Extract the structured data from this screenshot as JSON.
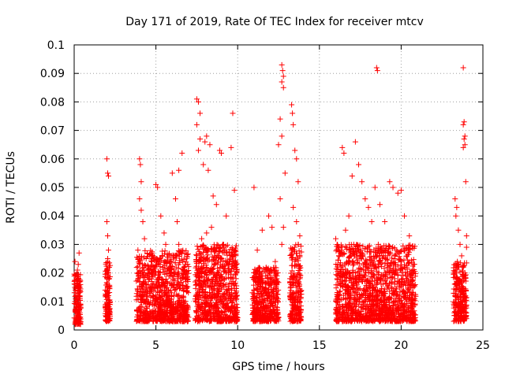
{
  "chart_data": {
    "type": "scatter",
    "title": "Day 171 of 2019, Rate Of TEC Index for receiver mtcv",
    "xlabel": "GPS time / hours",
    "ylabel": "ROTI / TECUs",
    "xlim": [
      0,
      25
    ],
    "ylim": [
      0,
      0.1
    ],
    "x_ticks": [
      0,
      5,
      10,
      15,
      20,
      25
    ],
    "x_tick_labels": [
      "0",
      "5",
      "10",
      "15",
      "20",
      "25"
    ],
    "y_ticks": [
      0,
      0.01,
      0.02,
      0.03,
      0.04,
      0.05,
      0.06,
      0.07,
      0.08,
      0.09,
      0.1
    ],
    "y_tick_labels": [
      "0",
      "0.01",
      "0.02",
      "0.03",
      "0.04",
      "0.05",
      "0.06",
      "0.07",
      "0.08",
      "0.09",
      "0.1"
    ],
    "grid": true,
    "marker": "+",
    "color": "#ff0000",
    "series": [
      {
        "name": "ROTI",
        "points": [
          [
            0.05,
            0.024
          ],
          [
            0.1,
            0.012
          ],
          [
            0.15,
            0.008
          ],
          [
            0.2,
            0.018
          ],
          [
            0.25,
            0.005
          ],
          [
            0.3,
            0.027
          ],
          [
            0.35,
            0.015
          ],
          [
            0.1,
            0.003
          ],
          [
            0.2,
            0.021
          ],
          [
            0.3,
            0.009
          ],
          [
            0.05,
            0.016
          ],
          [
            0.25,
            0.023
          ],
          [
            0.35,
            0.006
          ],
          [
            0.15,
            0.019
          ],
          [
            2.0,
            0.06
          ],
          [
            2.05,
            0.055
          ],
          [
            2.1,
            0.054
          ],
          [
            2.0,
            0.038
          ],
          [
            2.05,
            0.033
          ],
          [
            2.1,
            0.028
          ],
          [
            2.15,
            0.022
          ],
          [
            2.0,
            0.018
          ],
          [
            2.05,
            0.015
          ],
          [
            2.1,
            0.012
          ],
          [
            2.15,
            0.009
          ],
          [
            2.0,
            0.007
          ],
          [
            2.1,
            0.02
          ],
          [
            2.05,
            0.025
          ],
          [
            4.0,
            0.06
          ],
          [
            4.05,
            0.058
          ],
          [
            4.1,
            0.052
          ],
          [
            4.0,
            0.046
          ],
          [
            4.1,
            0.042
          ],
          [
            4.2,
            0.038
          ],
          [
            4.3,
            0.032
          ],
          [
            3.9,
            0.028
          ],
          [
            4.4,
            0.025
          ],
          [
            4.5,
            0.021
          ],
          [
            4.6,
            0.018
          ],
          [
            4.2,
            0.015
          ],
          [
            4.8,
            0.012
          ],
          [
            4.4,
            0.01
          ],
          [
            4.0,
            0.008
          ],
          [
            4.9,
            0.022
          ],
          [
            5.0,
            0.051
          ],
          [
            5.1,
            0.05
          ],
          [
            5.3,
            0.04
          ],
          [
            5.5,
            0.034
          ],
          [
            5.6,
            0.03
          ],
          [
            5.8,
            0.026
          ],
          [
            6.0,
            0.055
          ],
          [
            6.2,
            0.046
          ],
          [
            6.4,
            0.056
          ],
          [
            6.6,
            0.062
          ],
          [
            6.3,
            0.038
          ],
          [
            5.9,
            0.02
          ],
          [
            5.4,
            0.016
          ],
          [
            6.1,
            0.012
          ],
          [
            6.5,
            0.018
          ],
          [
            5.2,
            0.009
          ],
          [
            6.7,
            0.014
          ],
          [
            6.0,
            0.006
          ],
          [
            5.7,
            0.024
          ],
          [
            6.4,
            0.03
          ],
          [
            7.5,
            0.081
          ],
          [
            7.6,
            0.08
          ],
          [
            7.7,
            0.076
          ],
          [
            7.5,
            0.072
          ],
          [
            7.7,
            0.067
          ],
          [
            7.6,
            0.063
          ],
          [
            8.1,
            0.068
          ],
          [
            8.0,
            0.066
          ],
          [
            8.3,
            0.065
          ],
          [
            7.9,
            0.058
          ],
          [
            8.2,
            0.056
          ],
          [
            8.5,
            0.047
          ],
          [
            8.9,
            0.063
          ],
          [
            9.0,
            0.062
          ],
          [
            9.6,
            0.064
          ],
          [
            9.7,
            0.076
          ],
          [
            9.8,
            0.049
          ],
          [
            8.7,
            0.044
          ],
          [
            9.3,
            0.04
          ],
          [
            8.4,
            0.036
          ],
          [
            7.8,
            0.032
          ],
          [
            9.1,
            0.03
          ],
          [
            8.6,
            0.026
          ],
          [
            9.5,
            0.024
          ],
          [
            7.9,
            0.022
          ],
          [
            8.8,
            0.02
          ],
          [
            9.9,
            0.018
          ],
          [
            8.0,
            0.016
          ],
          [
            9.4,
            0.014
          ],
          [
            8.3,
            0.012
          ],
          [
            9.0,
            0.01
          ],
          [
            7.6,
            0.008
          ],
          [
            9.7,
            0.006
          ],
          [
            8.5,
            0.005
          ],
          [
            9.2,
            0.028
          ],
          [
            8.1,
            0.034
          ],
          [
            11.0,
            0.05
          ],
          [
            11.2,
            0.028
          ],
          [
            11.5,
            0.035
          ],
          [
            11.9,
            0.04
          ],
          [
            12.1,
            0.036
          ],
          [
            12.3,
            0.024
          ],
          [
            11.3,
            0.018
          ],
          [
            11.6,
            0.014
          ],
          [
            11.1,
            0.01
          ],
          [
            11.8,
            0.008
          ],
          [
            12.0,
            0.02
          ],
          [
            12.2,
            0.012
          ],
          [
            11.4,
            0.006
          ],
          [
            12.4,
            0.016
          ],
          [
            12.7,
            0.093
          ],
          [
            12.75,
            0.091
          ],
          [
            12.8,
            0.089
          ],
          [
            12.7,
            0.087
          ],
          [
            12.8,
            0.085
          ],
          [
            12.6,
            0.074
          ],
          [
            12.7,
            0.068
          ],
          [
            12.5,
            0.065
          ],
          [
            12.9,
            0.055
          ],
          [
            12.6,
            0.046
          ],
          [
            12.8,
            0.036
          ],
          [
            12.7,
            0.03
          ],
          [
            13.3,
            0.079
          ],
          [
            13.35,
            0.076
          ],
          [
            13.4,
            0.072
          ],
          [
            13.5,
            0.063
          ],
          [
            13.6,
            0.06
          ],
          [
            13.7,
            0.052
          ],
          [
            13.4,
            0.043
          ],
          [
            13.6,
            0.038
          ],
          [
            13.8,
            0.033
          ],
          [
            13.3,
            0.028
          ],
          [
            13.5,
            0.024
          ],
          [
            13.7,
            0.02
          ],
          [
            13.4,
            0.016
          ],
          [
            13.6,
            0.013
          ],
          [
            13.8,
            0.01
          ],
          [
            13.5,
            0.008
          ],
          [
            13.3,
            0.005
          ],
          [
            13.7,
            0.03
          ],
          [
            16.0,
            0.032
          ],
          [
            16.2,
            0.028
          ],
          [
            16.4,
            0.064
          ],
          [
            16.5,
            0.062
          ],
          [
            16.8,
            0.04
          ],
          [
            17.0,
            0.054
          ],
          [
            17.2,
            0.066
          ],
          [
            17.4,
            0.058
          ],
          [
            17.6,
            0.052
          ],
          [
            17.8,
            0.046
          ],
          [
            18.0,
            0.043
          ],
          [
            18.2,
            0.038
          ],
          [
            16.6,
            0.035
          ],
          [
            17.1,
            0.03
          ],
          [
            17.5,
            0.026
          ],
          [
            17.9,
            0.022
          ],
          [
            16.3,
            0.02
          ],
          [
            16.9,
            0.018
          ],
          [
            17.3,
            0.016
          ],
          [
            17.7,
            0.014
          ],
          [
            18.1,
            0.012
          ],
          [
            16.1,
            0.01
          ],
          [
            16.7,
            0.008
          ],
          [
            17.2,
            0.006
          ],
          [
            18.3,
            0.024
          ],
          [
            16.5,
            0.027
          ],
          [
            17.6,
            0.019
          ],
          [
            18.5,
            0.092
          ],
          [
            18.55,
            0.091
          ],
          [
            18.4,
            0.05
          ],
          [
            18.7,
            0.044
          ],
          [
            19.0,
            0.038
          ],
          [
            19.3,
            0.052
          ],
          [
            19.5,
            0.05
          ],
          [
            19.8,
            0.048
          ],
          [
            20.0,
            0.049
          ],
          [
            20.2,
            0.04
          ],
          [
            20.5,
            0.033
          ],
          [
            18.6,
            0.03
          ],
          [
            18.9,
            0.026
          ],
          [
            19.2,
            0.022
          ],
          [
            19.6,
            0.018
          ],
          [
            19.9,
            0.015
          ],
          [
            20.3,
            0.012
          ],
          [
            20.6,
            0.01
          ],
          [
            18.8,
            0.008
          ],
          [
            19.4,
            0.006
          ],
          [
            20.1,
            0.005
          ],
          [
            20.7,
            0.02
          ],
          [
            19.7,
            0.028
          ],
          [
            18.5,
            0.016
          ],
          [
            23.3,
            0.046
          ],
          [
            23.4,
            0.043
          ],
          [
            23.35,
            0.04
          ],
          [
            23.5,
            0.035
          ],
          [
            23.6,
            0.03
          ],
          [
            23.7,
            0.026
          ],
          [
            23.8,
            0.022
          ],
          [
            23.9,
            0.02
          ],
          [
            23.4,
            0.017
          ],
          [
            23.6,
            0.014
          ],
          [
            23.8,
            0.011
          ],
          [
            23.5,
            0.008
          ],
          [
            23.7,
            0.005
          ],
          [
            23.3,
            0.012
          ],
          [
            23.8,
            0.092
          ],
          [
            23.85,
            0.073
          ],
          [
            23.8,
            0.072
          ],
          [
            23.9,
            0.068
          ],
          [
            23.85,
            0.067
          ],
          [
            23.9,
            0.065
          ],
          [
            23.8,
            0.064
          ],
          [
            23.95,
            0.052
          ],
          [
            24.0,
            0.033
          ],
          [
            24.0,
            0.029
          ]
        ],
        "dense_segments": [
          [
            0.0,
            0.4,
            0.002,
            0.02
          ],
          [
            1.9,
            2.2,
            0.003,
            0.024
          ],
          [
            3.8,
            7.0,
            0.003,
            0.028
          ],
          [
            7.4,
            10.0,
            0.003,
            0.03
          ],
          [
            10.9,
            12.5,
            0.003,
            0.022
          ],
          [
            13.2,
            13.9,
            0.003,
            0.03
          ],
          [
            16.0,
            18.4,
            0.003,
            0.03
          ],
          [
            18.4,
            20.9,
            0.003,
            0.03
          ],
          [
            23.2,
            24.0,
            0.003,
            0.024
          ]
        ]
      }
    ]
  }
}
